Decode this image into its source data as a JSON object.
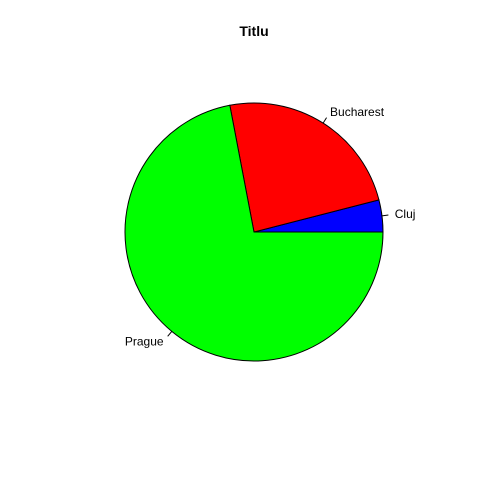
{
  "chart_data": {
    "type": "pie",
    "title": "Titlu",
    "slices": [
      {
        "label": "Cluj",
        "value": 4,
        "color": "#0000FF"
      },
      {
        "label": "Bucharest",
        "value": 24,
        "color": "#FF0000"
      },
      {
        "label": "Prague",
        "value": 72,
        "color": "#00FF00"
      }
    ],
    "start": "east",
    "direction": "counterclockwise",
    "border_color": "#000000"
  }
}
